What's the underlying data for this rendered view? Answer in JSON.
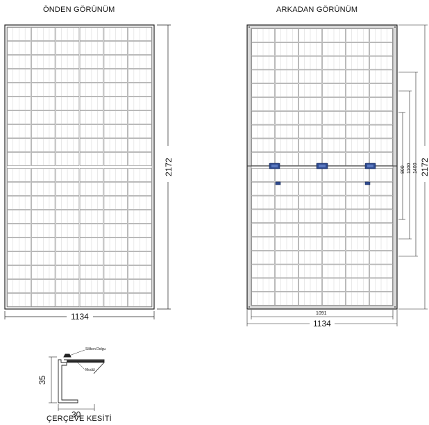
{
  "front_view": {
    "title": "ÖNDEN GÖRÜNÜM",
    "width_label": "1134",
    "height_label": "2172"
  },
  "back_view": {
    "title": "ARKADAN GÖRÜNÜM",
    "inner_width_label": "1091",
    "width_label": "1134",
    "height_label": "2172",
    "mount_labels": [
      "800",
      "1100",
      "1400"
    ]
  },
  "frame_section": {
    "title": "ÇERÇEVE KESİTİ",
    "height_label": "35",
    "width_label": "30",
    "callout_silicone": "Silikon Dolgu",
    "callout_module": "Modül"
  },
  "colors": {
    "line": "#222222",
    "cell_line": "#777777",
    "frame_fill": "#d9d9d9",
    "junction_box": "#2f4b8f"
  }
}
